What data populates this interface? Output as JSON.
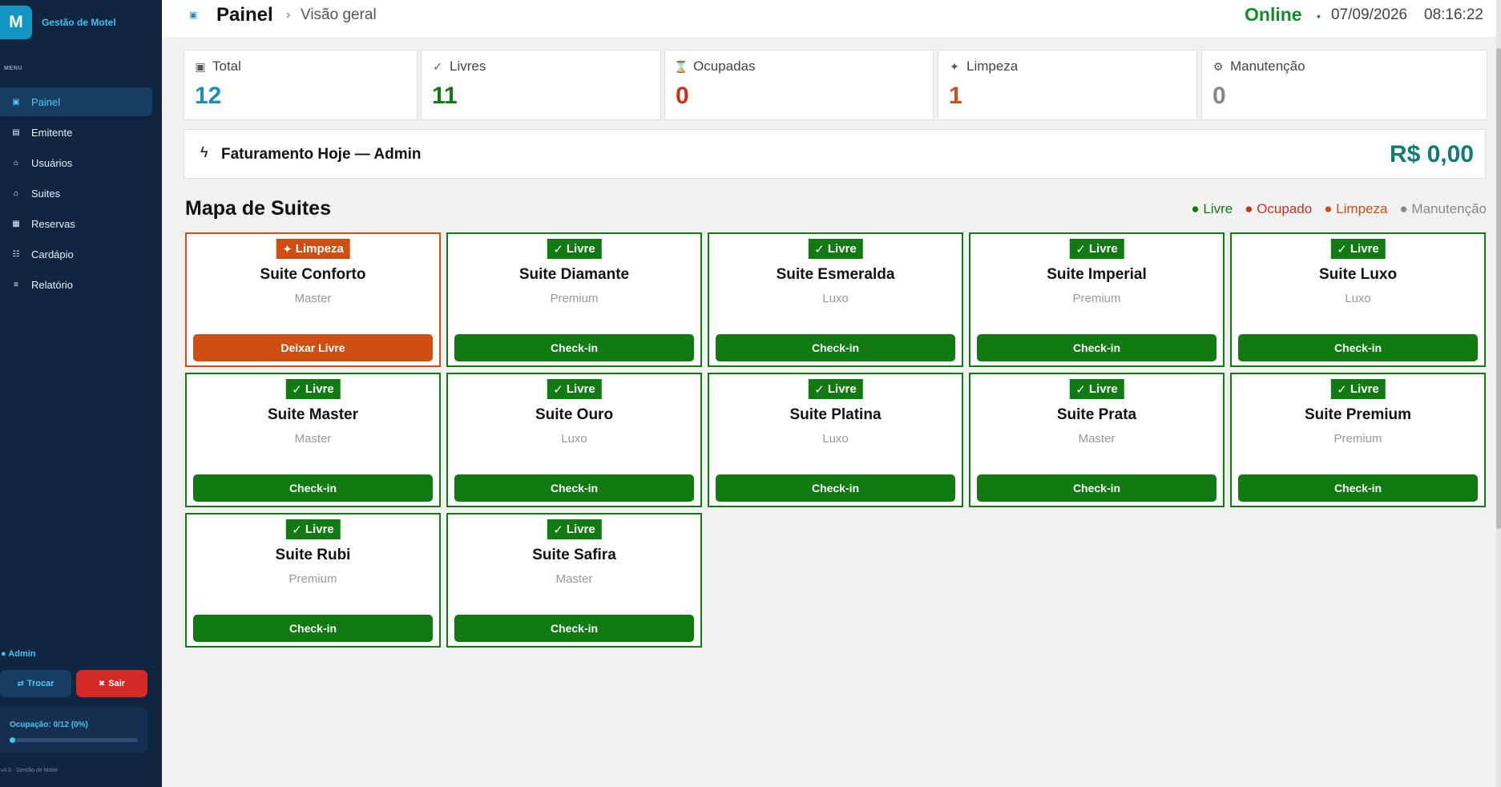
{
  "brand": {
    "logo_letter": "M",
    "name": "Gestão de Motel"
  },
  "sidebar": {
    "menu_label": "MENU",
    "items": [
      {
        "label": "Painel",
        "icon": "square-icon",
        "glyph": "▣",
        "active": true
      },
      {
        "label": "Emitente",
        "icon": "id-card-icon",
        "glyph": "▤",
        "active": false
      },
      {
        "label": "Usuários",
        "icon": "home-icon",
        "glyph": "⌂",
        "active": false
      },
      {
        "label": "Suites",
        "icon": "home-icon",
        "glyph": "⌂",
        "active": false
      },
      {
        "label": "Reservas",
        "icon": "calendar-icon",
        "glyph": "▦",
        "active": false
      },
      {
        "label": "Cardápio",
        "icon": "grid-list-icon",
        "glyph": "☷",
        "active": false
      },
      {
        "label": "Relatório",
        "icon": "list-icon",
        "glyph": "≡",
        "active": false
      }
    ],
    "user": "● Admin",
    "trocar_label": "Trocar",
    "sair_label": "Sair",
    "occupancy": {
      "text": "Ocupação: 0/12 (0%)",
      "fraction": 0
    },
    "version": "v4.0 · Gestão de Motel"
  },
  "header": {
    "title": "Painel",
    "separator": "›",
    "subtitle": "Visão geral",
    "status": "Online",
    "status_dot": "•",
    "date": "07/09/2026",
    "time": "08:16:22"
  },
  "stats": [
    {
      "label": "Total",
      "value": "12",
      "icon": "square-icon",
      "glyph": "▣",
      "color": "#1a8fb5"
    },
    {
      "label": "Livres",
      "value": "11",
      "icon": "check-icon",
      "glyph": "✓",
      "color": "#127a12"
    },
    {
      "label": "Ocupadas",
      "value": "0",
      "icon": "hourglass-icon",
      "glyph": "⌛",
      "color": "#c8321c"
    },
    {
      "label": "Limpeza",
      "value": "1",
      "icon": "sparkle-icon",
      "glyph": "✦",
      "color": "#cf4f12"
    },
    {
      "label": "Manutenção",
      "value": "0",
      "icon": "gear-icon",
      "glyph": "⚙",
      "color": "#888888"
    }
  ],
  "revenue": {
    "label": "Faturamento Hoje — Admin",
    "value": "R$ 0,00",
    "icon": "lightning-icon"
  },
  "map": {
    "title": "Mapa de Suites",
    "legend": [
      {
        "label": "● Livre",
        "color": "#127a12"
      },
      {
        "label": "● Ocupado",
        "color": "#c8321c"
      },
      {
        "label": "● Limpeza",
        "color": "#cf4f12"
      },
      {
        "label": "● Manutenção",
        "color": "#888888"
      }
    ],
    "suites": [
      {
        "name": "Suite Conforto",
        "category": "Master",
        "status": "Limpeza",
        "badge_icon": "✦",
        "action": "Deixar Livre"
      },
      {
        "name": "Suite Diamante",
        "category": "Premium",
        "status": "Livre",
        "badge_icon": "✓",
        "action": "Check-in"
      },
      {
        "name": "Suite Esmeralda",
        "category": "Luxo",
        "status": "Livre",
        "badge_icon": "✓",
        "action": "Check-in"
      },
      {
        "name": "Suite Imperial",
        "category": "Premium",
        "status": "Livre",
        "badge_icon": "✓",
        "action": "Check-in"
      },
      {
        "name": "Suite Luxo",
        "category": "Luxo",
        "status": "Livre",
        "badge_icon": "✓",
        "action": "Check-in"
      },
      {
        "name": "Suite Master",
        "category": "Master",
        "status": "Livre",
        "badge_icon": "✓",
        "action": "Check-in"
      },
      {
        "name": "Suite Ouro",
        "category": "Luxo",
        "status": "Livre",
        "badge_icon": "✓",
        "action": "Check-in"
      },
      {
        "name": "Suite Platina",
        "category": "Luxo",
        "status": "Livre",
        "badge_icon": "✓",
        "action": "Check-in"
      },
      {
        "name": "Suite Prata",
        "category": "Master",
        "status": "Livre",
        "badge_icon": "✓",
        "action": "Check-in"
      },
      {
        "name": "Suite Premium",
        "category": "Premium",
        "status": "Livre",
        "badge_icon": "✓",
        "action": "Check-in"
      },
      {
        "name": "Suite Rubi",
        "category": "Premium",
        "status": "Livre",
        "badge_icon": "✓",
        "action": "Check-in"
      },
      {
        "name": "Suite Safira",
        "category": "Master",
        "status": "Livre",
        "badge_icon": "✓",
        "action": "Check-in"
      }
    ]
  },
  "colors": {
    "sidebar_bg": "#0f2540",
    "accent": "#1196c4",
    "livre": "#127a12",
    "limpeza": "#cf4f12",
    "revenue": "#0f7b72"
  }
}
